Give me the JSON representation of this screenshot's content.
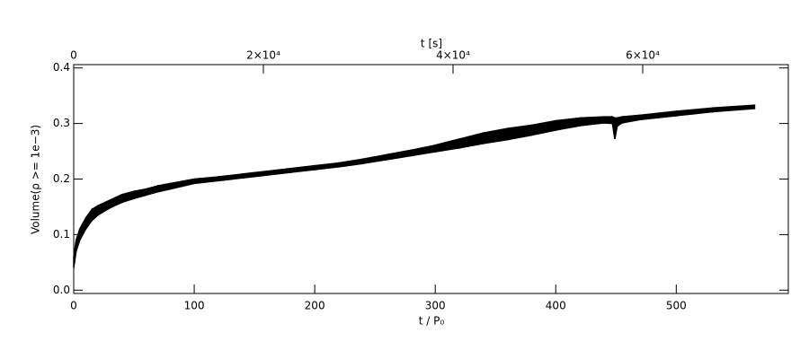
{
  "chart_data": {
    "type": "band",
    "xlabel": "t / P₀",
    "ylabel": "Volume(ρ >= 1e−3)",
    "x2label": "t [s]",
    "color": "#000000",
    "x": [
      0,
      2,
      5,
      10,
      15,
      20,
      30,
      40,
      50,
      60,
      70,
      80,
      90,
      100,
      120,
      140,
      160,
      180,
      200,
      220,
      240,
      260,
      280,
      300,
      320,
      340,
      360,
      380,
      400,
      420,
      440,
      447,
      449,
      451,
      455,
      470,
      500,
      530,
      565
    ],
    "lower": [
      0.04,
      0.07,
      0.09,
      0.11,
      0.125,
      0.135,
      0.148,
      0.158,
      0.165,
      0.171,
      0.177,
      0.182,
      0.187,
      0.192,
      0.197,
      0.202,
      0.207,
      0.212,
      0.217,
      0.222,
      0.228,
      0.235,
      0.242,
      0.249,
      0.256,
      0.264,
      0.271,
      0.279,
      0.288,
      0.296,
      0.301,
      0.3,
      0.272,
      0.295,
      0.301,
      0.307,
      0.314,
      0.321,
      0.327
    ],
    "upper": [
      0.06,
      0.09,
      0.11,
      0.13,
      0.145,
      0.152,
      0.162,
      0.172,
      0.178,
      0.182,
      0.188,
      0.192,
      0.196,
      0.2,
      0.204,
      0.209,
      0.214,
      0.219,
      0.224,
      0.229,
      0.236,
      0.244,
      0.252,
      0.261,
      0.272,
      0.283,
      0.291,
      0.297,
      0.305,
      0.31,
      0.312,
      0.312,
      0.31,
      0.31,
      0.312,
      0.315,
      0.322,
      0.328,
      0.333
    ],
    "xlim": [
      0,
      593
    ],
    "xticks": [
      0,
      100,
      200,
      300,
      400,
      500
    ],
    "ylim": [
      -0.006,
      0.406
    ],
    "yticks": [
      {
        "value": 0,
        "label": "0.0"
      },
      0.1,
      0.2,
      0.3,
      0.4
    ],
    "x2lim": [
      0,
      75355
    ],
    "x2ticks": [
      0,
      {
        "value": 20000,
        "label": "2×10⁴"
      },
      {
        "value": 40000,
        "label": "4×10⁴"
      },
      {
        "value": 60000,
        "label": "6×10⁴"
      }
    ]
  }
}
